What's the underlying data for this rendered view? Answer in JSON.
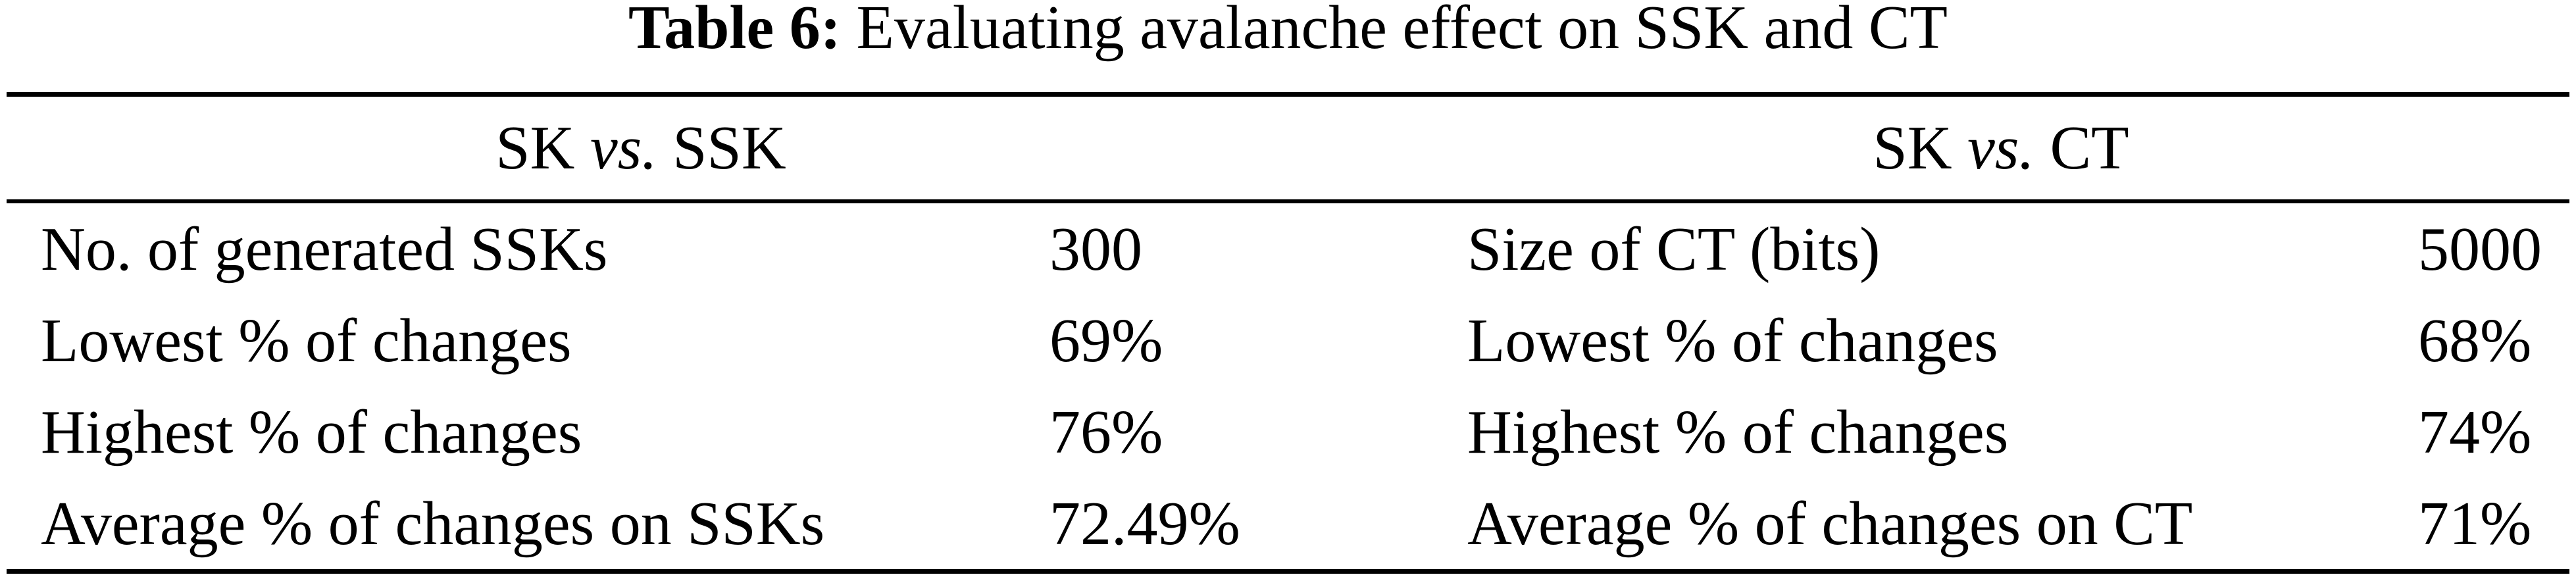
{
  "caption": {
    "label": "Table 6:",
    "text": "Evaluating avalanche effect on SSK and CT"
  },
  "table": {
    "groups": [
      {
        "pre": "SK",
        "vs": "vs.",
        "post": "SSK"
      },
      {
        "pre": "SK",
        "vs": "vs.",
        "post": "CT"
      }
    ],
    "rows": [
      {
        "left_label": "No. of generated SSKs",
        "left_value": "300",
        "right_label": "Size of CT (bits)",
        "right_value": "5000"
      },
      {
        "left_label": "Lowest % of changes",
        "left_value": "69%",
        "right_label": "Lowest % of changes",
        "right_value": "68%"
      },
      {
        "left_label": "Highest % of changes",
        "left_value": "76%",
        "right_label": "Highest % of changes",
        "right_value": "74%"
      },
      {
        "left_label": "Average % of changes on SSKs",
        "left_value": "72.49%",
        "right_label": "Average % of changes on CT",
        "right_value": "71%"
      }
    ]
  },
  "colors": {
    "text": "#000000",
    "rules": "#000000",
    "background": "#ffffff"
  }
}
